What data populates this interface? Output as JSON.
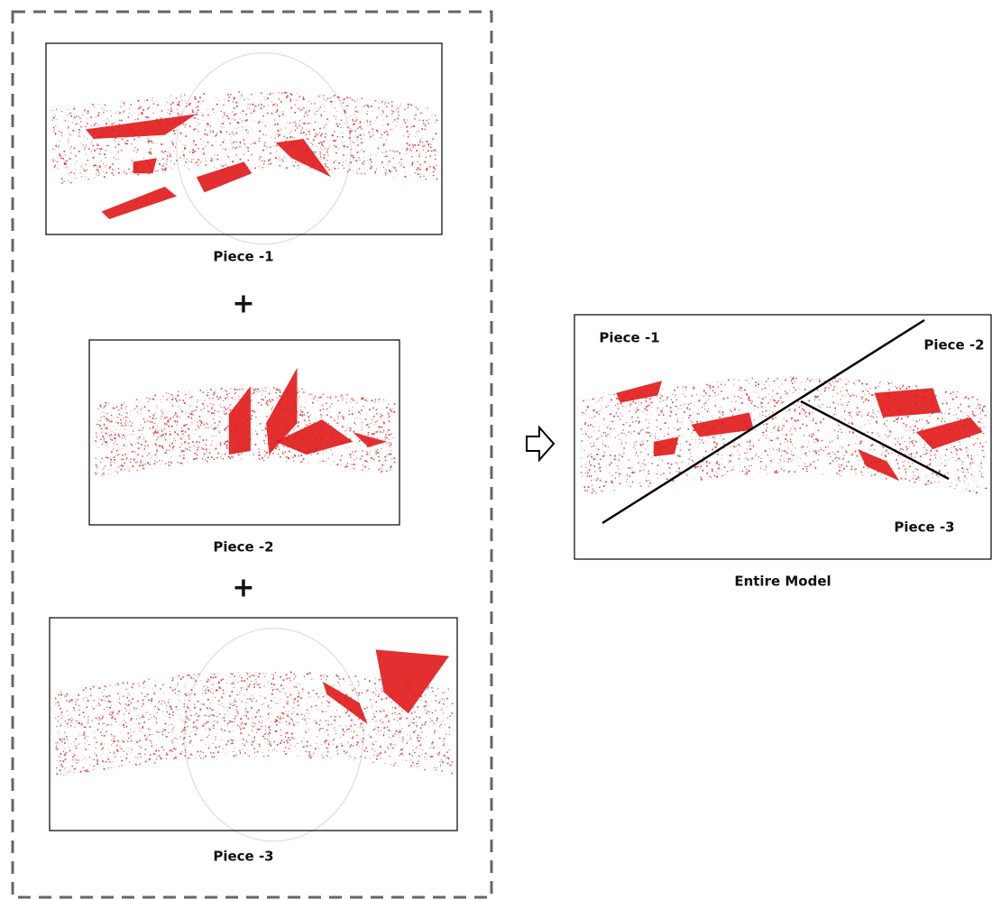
{
  "pieces": [
    {
      "label": "Piece -1"
    },
    {
      "label": "Piece -2"
    },
    {
      "label": "Piece -3"
    }
  ],
  "plus_signs": [
    "+",
    "+"
  ],
  "result": {
    "label": "Entire Model",
    "region_labels": [
      "Piece -1",
      "Piece -2",
      "Piece -3"
    ]
  }
}
